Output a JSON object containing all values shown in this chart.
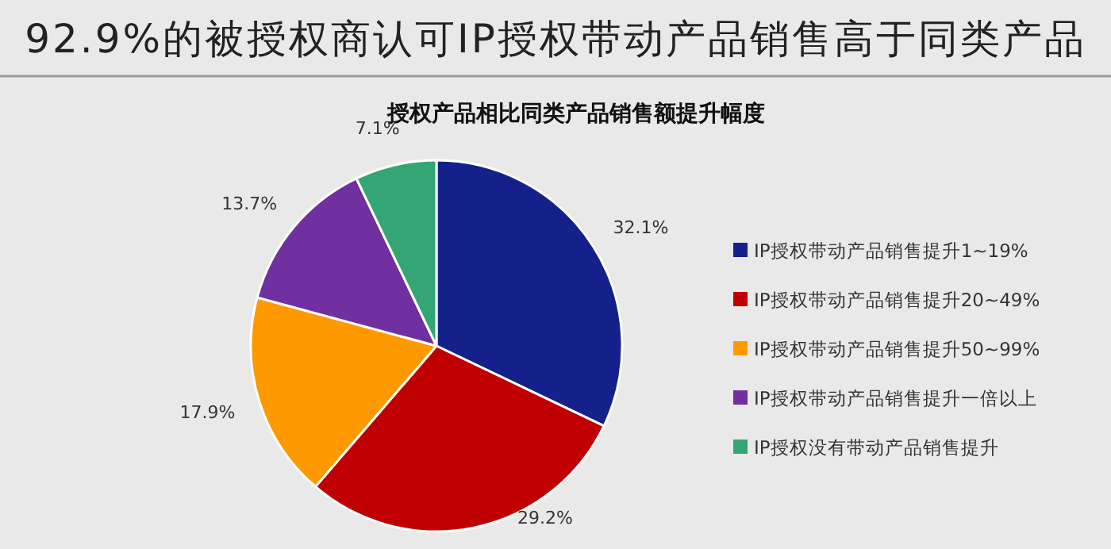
{
  "chart_data": {
    "type": "pie",
    "title": "92.9%的被授权商认可IP授权带动产品销售高于同类产品",
    "subtitle": "授权产品相比同类产品销售额提升幅度",
    "categories": [
      "IP授权带动产品销售提升1~19%",
      "IP授权带动产品销售提升20~49%",
      "IP授权带动产品销售提升50~99%",
      "IP授权带动产品销售提升一倍以上",
      "IP授权没有带动产品销售提升"
    ],
    "values": [
      32.1,
      29.2,
      17.9,
      13.7,
      7.1
    ],
    "value_labels": [
      "32.1%",
      "29.2%",
      "17.9%",
      "13.7%",
      "7.1%"
    ],
    "colors": [
      "#14218a",
      "#c00000",
      "#ff9900",
      "#7030a0",
      "#33a673"
    ],
    "legend": "right"
  }
}
